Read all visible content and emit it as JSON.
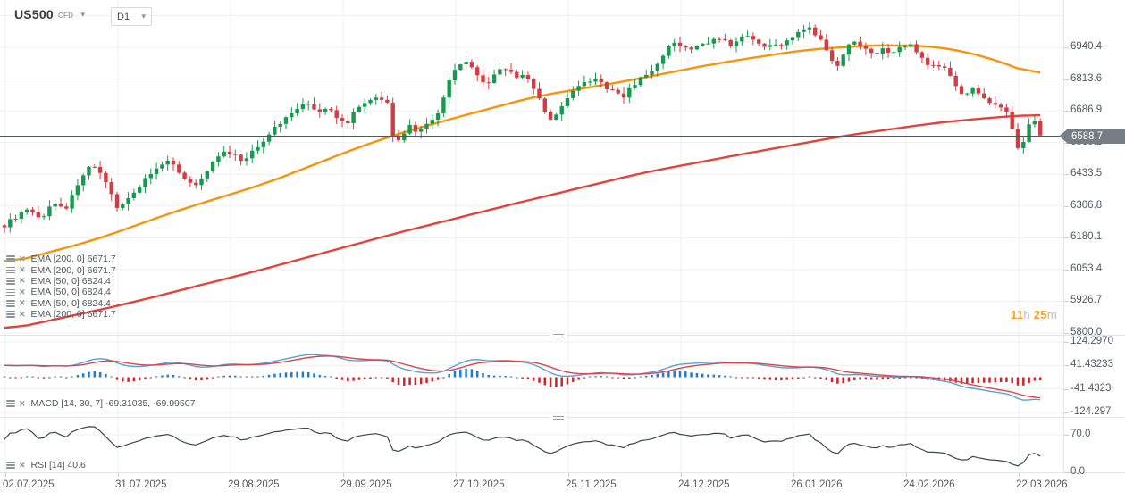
{
  "toolbar": {
    "symbol": "US500",
    "symbol_type": "CFD",
    "timeframe": "D1"
  },
  "legend": {
    "items": [
      {
        "label": "EMA [200, 0]",
        "value": "6671.7"
      },
      {
        "label": "EMA [200, 0]",
        "value": "6671.7"
      },
      {
        "label": "EMA [50, 0]",
        "value": "6824.4"
      },
      {
        "label": "EMA [50, 0]",
        "value": "6824.4"
      },
      {
        "label": "EMA [50, 0]",
        "value": "6824.4"
      },
      {
        "label": "EMA [200, 0]",
        "value": "6671.7"
      }
    ]
  },
  "indicators": {
    "macd_label": "MACD [14, 30, 7]",
    "macd_values": "-69.31035,  -69.99507",
    "rsi_label": "RSI [14]",
    "rsi_value": "40.6"
  },
  "timer": {
    "hours": "11",
    "h_unit": "h",
    "minutes": "25",
    "m_unit": "m"
  },
  "price_axis": {
    "labels": [
      "6940.4",
      "6813.6",
      "6686.9",
      "6560.2",
      "6433.5",
      "6306.8",
      "6180.1",
      "6053.4",
      "5926.7",
      "5800.0"
    ],
    "current": "6588.7"
  },
  "macd_axis": [
    "124.2970",
    "41.43233",
    "-41.4323",
    "-124.297"
  ],
  "rsi_axis": [
    "70.0",
    "0.0"
  ],
  "date_axis": [
    "02.07.2025",
    "31.07.2025",
    "29.08.2025",
    "29.09.2025",
    "27.10.2025",
    "25.11.2025",
    "24.12.2025",
    "26.01.2026",
    "24.02.2026",
    "22.03.2026"
  ],
  "colors": {
    "candle_up": "#179a4f",
    "candle_down": "#d23c42",
    "ema50": "#f8930b",
    "ema200": "#e2443d",
    "macd_line": "#58a0d6",
    "macd_signal": "#d6474d",
    "hist_pos": "#1e7cd0",
    "hist_neg": "#c8252c",
    "rsi_line": "#3f474e",
    "grid": "#efefef",
    "price_line": "#53585d",
    "badge_bg": "#757d85",
    "timer_accent": "#f7a022"
  },
  "chart_data": {
    "type": "candlestick+indicators",
    "symbol": "US500",
    "timeframe": "D1",
    "price_range": [
      5800.0,
      6940.4
    ],
    "current_price": 6588.7,
    "price_path": [
      [
        5,
        6230
      ],
      [
        18,
        6265
      ],
      [
        30,
        6290
      ],
      [
        45,
        6255
      ],
      [
        60,
        6320
      ],
      [
        75,
        6300
      ],
      [
        90,
        6420
      ],
      [
        102,
        6470
      ],
      [
        115,
        6420
      ],
      [
        132,
        6300
      ],
      [
        148,
        6350
      ],
      [
        163,
        6420
      ],
      [
        178,
        6460
      ],
      [
        192,
        6490
      ],
      [
        207,
        6410
      ],
      [
        218,
        6390
      ],
      [
        232,
        6450
      ],
      [
        247,
        6520
      ],
      [
        262,
        6510
      ],
      [
        272,
        6480
      ],
      [
        287,
        6540
      ],
      [
        302,
        6600
      ],
      [
        317,
        6650
      ],
      [
        332,
        6700
      ],
      [
        345,
        6715
      ],
      [
        357,
        6680
      ],
      [
        368,
        6695
      ],
      [
        378,
        6655
      ],
      [
        388,
        6630
      ],
      [
        398,
        6700
      ],
      [
        410,
        6725
      ],
      [
        422,
        6740
      ],
      [
        433,
        6735
      ],
      [
        440,
        6580
      ],
      [
        448,
        6560
      ],
      [
        458,
        6630
      ],
      [
        468,
        6600
      ],
      [
        478,
        6630
      ],
      [
        488,
        6655
      ],
      [
        498,
        6760
      ],
      [
        508,
        6850
      ],
      [
        518,
        6890
      ],
      [
        528,
        6855
      ],
      [
        538,
        6805
      ],
      [
        548,
        6790
      ],
      [
        558,
        6860
      ],
      [
        568,
        6855
      ],
      [
        578,
        6820
      ],
      [
        588,
        6830
      ],
      [
        598,
        6775
      ],
      [
        608,
        6700
      ],
      [
        618,
        6640
      ],
      [
        628,
        6700
      ],
      [
        638,
        6750
      ],
      [
        648,
        6790
      ],
      [
        658,
        6800
      ],
      [
        668,
        6820
      ],
      [
        678,
        6770
      ],
      [
        688,
        6770
      ],
      [
        698,
        6740
      ],
      [
        708,
        6790
      ],
      [
        718,
        6820
      ],
      [
        728,
        6845
      ],
      [
        738,
        6875
      ],
      [
        748,
        6940
      ],
      [
        758,
        6960
      ],
      [
        768,
        6930
      ],
      [
        778,
        6940
      ],
      [
        788,
        6960
      ],
      [
        798,
        6965
      ],
      [
        808,
        6985
      ],
      [
        818,
        6950
      ],
      [
        828,
        6970
      ],
      [
        838,
        6985
      ],
      [
        848,
        6950
      ],
      [
        858,
        6940
      ],
      [
        868,
        6950
      ],
      [
        878,
        6960
      ],
      [
        888,
        6985
      ],
      [
        898,
        7005
      ],
      [
        908,
        7015
      ],
      [
        918,
        6970
      ],
      [
        928,
        6900
      ],
      [
        938,
        6870
      ],
      [
        948,
        6950
      ],
      [
        958,
        6960
      ],
      [
        968,
        6940
      ],
      [
        978,
        6920
      ],
      [
        988,
        6930
      ],
      [
        998,
        6920
      ],
      [
        1008,
        6940
      ],
      [
        1018,
        6960
      ],
      [
        1028,
        6910
      ],
      [
        1038,
        6870
      ],
      [
        1048,
        6880
      ],
      [
        1058,
        6850
      ],
      [
        1068,
        6800
      ],
      [
        1078,
        6750
      ],
      [
        1088,
        6780
      ],
      [
        1098,
        6740
      ],
      [
        1108,
        6720
      ],
      [
        1118,
        6700
      ],
      [
        1128,
        6680
      ],
      [
        1136,
        6570
      ],
      [
        1142,
        6520
      ],
      [
        1148,
        6610
      ],
      [
        1154,
        6660
      ],
      [
        1159,
        6640
      ],
      [
        1163,
        6589
      ]
    ],
    "ema50_path": [
      [
        0,
        6070
      ],
      [
        105,
        6170
      ],
      [
        200,
        6290
      ],
      [
        300,
        6400
      ],
      [
        400,
        6540
      ],
      [
        450,
        6600
      ],
      [
        500,
        6650
      ],
      [
        600,
        6745
      ],
      [
        700,
        6805
      ],
      [
        800,
        6875
      ],
      [
        900,
        6930
      ],
      [
        980,
        6950
      ],
      [
        1050,
        6944
      ],
      [
        1105,
        6902
      ],
      [
        1163,
        6824
      ]
    ],
    "ema200_path": [
      [
        0,
        5807
      ],
      [
        140,
        5915
      ],
      [
        290,
        6050
      ],
      [
        440,
        6195
      ],
      [
        580,
        6320
      ],
      [
        720,
        6440
      ],
      [
        840,
        6520
      ],
      [
        950,
        6590
      ],
      [
        1050,
        6640
      ],
      [
        1120,
        6663
      ],
      [
        1163,
        6672
      ]
    ],
    "macd": {
      "params": [
        14,
        30,
        7
      ],
      "values": [
        -69.31035,
        -69.99507
      ],
      "axis": [
        124.297,
        41.43233,
        -41.4323,
        -124.297
      ]
    },
    "rsi": {
      "params": [
        14
      ],
      "value": 40.6,
      "axis": [
        70.0,
        0.0
      ]
    }
  }
}
